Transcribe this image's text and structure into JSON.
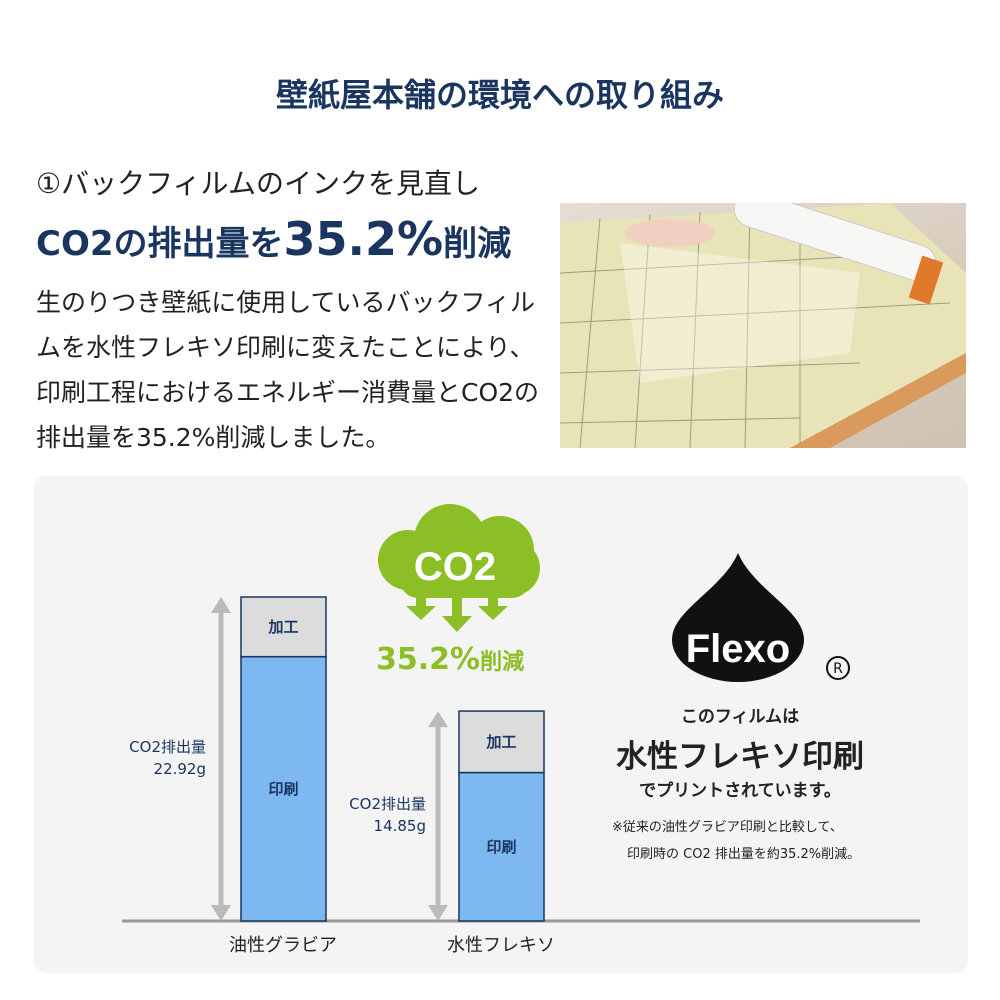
{
  "header": {
    "title": "壁紙屋本舗の環境への取り組み"
  },
  "section": {
    "subtitle": "①バックフィルムのインクを見直し",
    "headline_pre": "CO2の排出量を",
    "headline_value": "35.2%",
    "headline_post": "削減",
    "body": "生のりつき壁紙に使用しているバックフィルムを水性フレキソ印刷に変えたことにより、印刷工程におけるエネルギー消費量とCO2の排出量を35.2%削減しました。",
    "photo_alt": "wallpaper backing film being peeled from roll"
  },
  "infographic": {
    "cloud_text": "CO2",
    "reduction_value": "35.2%",
    "reduction_label": "削減",
    "logo_text": "Flexo",
    "registered_mark": "®",
    "flexo_line1": "このフィルムは",
    "flexo_line2": "水性フレキソ印刷",
    "flexo_line3": "でプリントされています。",
    "note_line1": "※従来の油性グラビア印刷と比較して、",
    "note_line2": "印刷時の CO2 排出量を約35.2%削減。",
    "colors": {
      "navy": "#1a3560",
      "green": "#8cbf26",
      "print_blue": "#7db9f0",
      "process_gray": "#dcdcdc"
    }
  },
  "chart_data": {
    "type": "bar",
    "stacked": true,
    "categories": [
      "油性グラビア",
      "水性フレキソ"
    ],
    "series": [
      {
        "name": "印刷",
        "values": [
          18.7,
          10.5
        ]
      },
      {
        "name": "加工",
        "values": [
          4.22,
          4.35
        ]
      }
    ],
    "totals_labels": [
      {
        "label": "CO2排出量",
        "value": "22.92g"
      },
      {
        "label": "CO2排出量",
        "value": "14.85g"
      }
    ],
    "totals": [
      22.92,
      14.85
    ],
    "ylim": [
      0,
      22.92
    ],
    "grid": false
  }
}
